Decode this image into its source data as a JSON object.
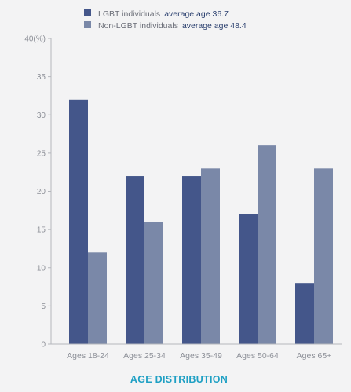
{
  "chart_data": {
    "type": "bar",
    "title": "AGE DISTRIBUTION",
    "categories": [
      "Ages 18-24",
      "Ages 25-34",
      "Ages 35-49",
      "Ages 50-64",
      "Ages 65+"
    ],
    "series": [
      {
        "name": "LGBT individuals",
        "note": "average age 36.7",
        "color": "#44568a",
        "values": [
          32,
          22,
          22,
          17,
          8
        ]
      },
      {
        "name": "Non-LGBT individuals",
        "note": "average age 48.4",
        "color": "#7a88a8",
        "values": [
          12,
          16,
          23,
          26,
          23
        ]
      }
    ],
    "y_ticks": [
      "0",
      "5",
      "10",
      "15",
      "20",
      "25",
      "30",
      "35",
      "40(%)"
    ],
    "ylim": [
      0,
      40
    ],
    "grid": false,
    "legend_position": "top-left"
  }
}
